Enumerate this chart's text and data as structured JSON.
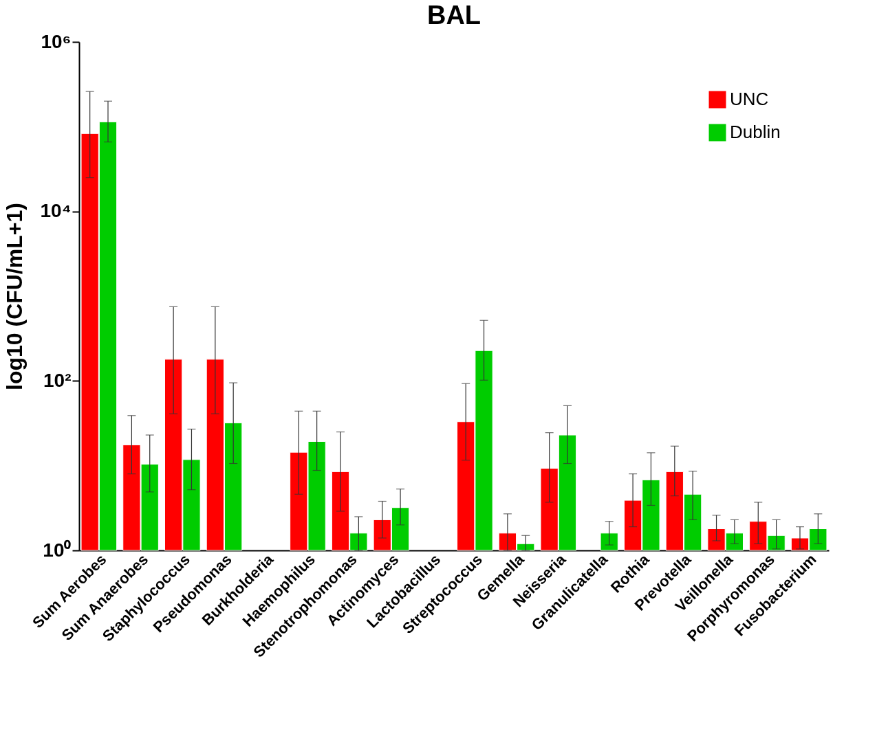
{
  "chart_data": {
    "type": "bar",
    "title": "BAL",
    "ylabel": "log10 (CFU/mL+1)",
    "categories": [
      "Sum Aerobes",
      "Sum Anaerobes",
      "Staphylococcus",
      "Pseudomonas",
      "Burkholderia",
      "Haemophilus",
      "Stenotrophomonas",
      "Actinomyces",
      "Lactobacillus",
      "Streptococcus",
      "Gemella",
      "Neisseria",
      "Granulicatella",
      "Rothia",
      "Prevotella",
      "Veillonella",
      "Porphyromonas",
      "Fusobacterium"
    ],
    "series": [
      {
        "name": "UNC",
        "color": "#ff0000",
        "values": [
          83000,
          17.6,
          180,
          180,
          null,
          14.4,
          8.5,
          2.3,
          null,
          33,
          1.6,
          9.3,
          null,
          3.9,
          8.5,
          1.8,
          2.2,
          1.4
        ],
        "errors": [
          [
            25000,
            260000
          ],
          [
            8,
            39
          ],
          [
            41,
            750
          ],
          [
            41,
            750
          ],
          null,
          [
            4.6,
            44
          ],
          [
            2.9,
            25
          ],
          [
            1.4,
            3.8
          ],
          null,
          [
            11.6,
            93
          ],
          [
            1,
            2.7
          ],
          [
            3.7,
            24.5
          ],
          null,
          [
            1.9,
            8
          ],
          [
            4.4,
            17
          ],
          [
            1.3,
            2.6
          ],
          [
            1.2,
            3.7
          ],
          [
            1.04,
            1.9
          ]
        ]
      },
      {
        "name": "Dublin",
        "color": "#00cc00",
        "values": [
          114000,
          10.4,
          11.8,
          32,
          null,
          19.3,
          1.6,
          3.2,
          null,
          228,
          1.2,
          23,
          1.6,
          6.8,
          4.6,
          1.6,
          1.5,
          1.8
        ],
        "errors": [
          [
            66000,
            200000
          ],
          [
            4.9,
            23
          ],
          [
            5.2,
            27
          ],
          [
            10.6,
            95
          ],
          null,
          [
            8.8,
            44
          ],
          [
            1,
            2.5
          ],
          [
            2,
            5.3
          ],
          null,
          [
            102,
            518
          ],
          [
            1,
            1.5
          ],
          [
            10.6,
            51
          ],
          [
            1.16,
            2.2
          ],
          [
            3.4,
            14.2
          ],
          [
            2.3,
            8.6
          ],
          [
            1.2,
            2.3
          ],
          [
            1.04,
            2.3
          ],
          [
            1.2,
            2.7
          ]
        ]
      }
    ],
    "log": true,
    "ylim": [
      1,
      1000000
    ],
    "yticks": [
      {
        "value": 1,
        "label": "10⁰"
      },
      {
        "value": 100,
        "label": "10²"
      },
      {
        "value": 10000,
        "label": "10⁴"
      },
      {
        "value": 1000000,
        "label": "10⁶"
      }
    ],
    "grid": false,
    "legend": "top right"
  }
}
